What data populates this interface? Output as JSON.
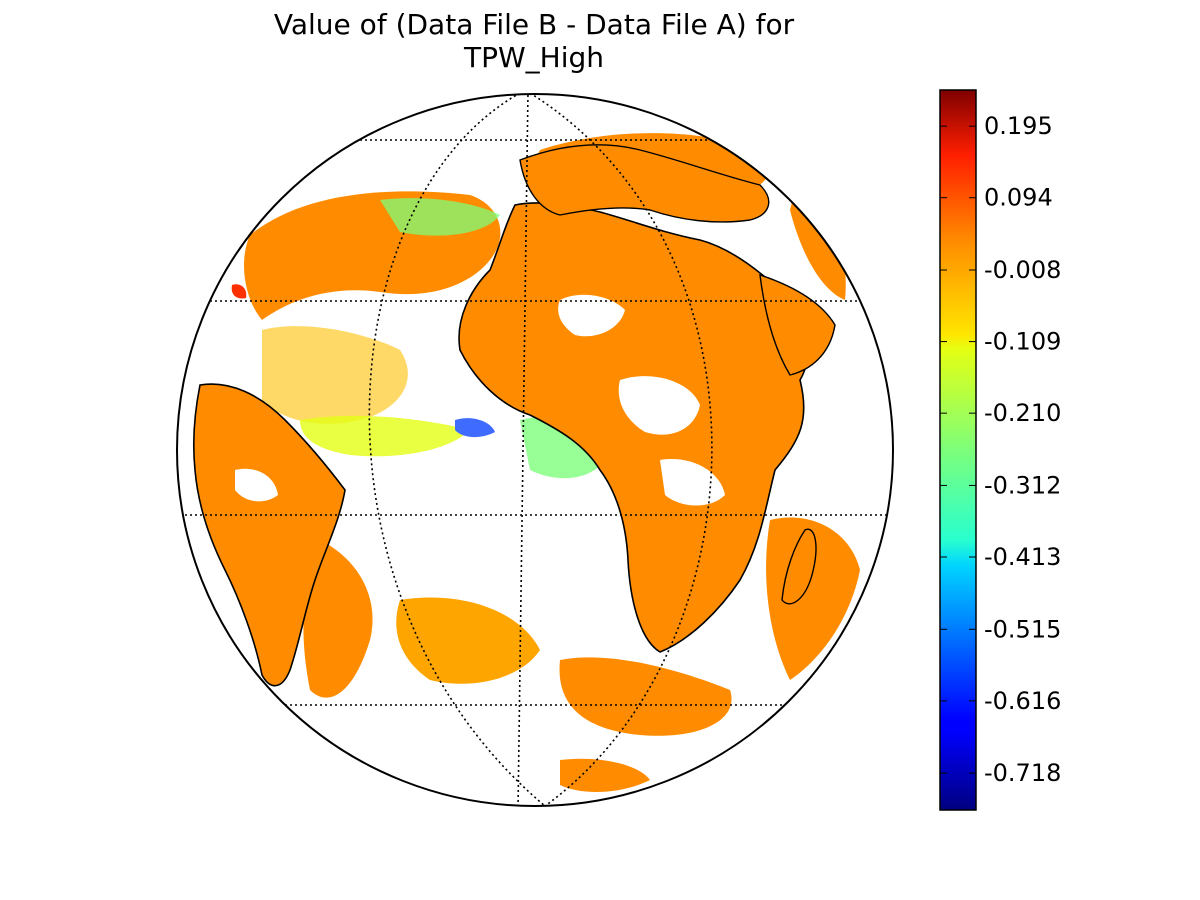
{
  "title_line1": "Value of (Data File B - Data File A) for",
  "title_line2": "TPW_High",
  "map": {
    "projection": "orthographic",
    "grid_lines": "dotted",
    "colors": {
      "background": "#ffffff",
      "outline": "#000000",
      "dominant_fill": "#ff8c00"
    }
  },
  "colorbar": {
    "colormap": "jet",
    "range": [
      -0.77,
      0.246
    ],
    "ticks": [
      {
        "value": 0.195,
        "label": "0.195"
      },
      {
        "value": 0.094,
        "label": "0.094"
      },
      {
        "value": -0.008,
        "label": "-0.008"
      },
      {
        "value": -0.109,
        "label": "-0.109"
      },
      {
        "value": -0.21,
        "label": "-0.210"
      },
      {
        "value": -0.312,
        "label": "-0.312"
      },
      {
        "value": -0.413,
        "label": "-0.413"
      },
      {
        "value": -0.515,
        "label": "-0.515"
      },
      {
        "value": -0.616,
        "label": "-0.616"
      },
      {
        "value": -0.718,
        "label": "-0.718"
      }
    ]
  }
}
